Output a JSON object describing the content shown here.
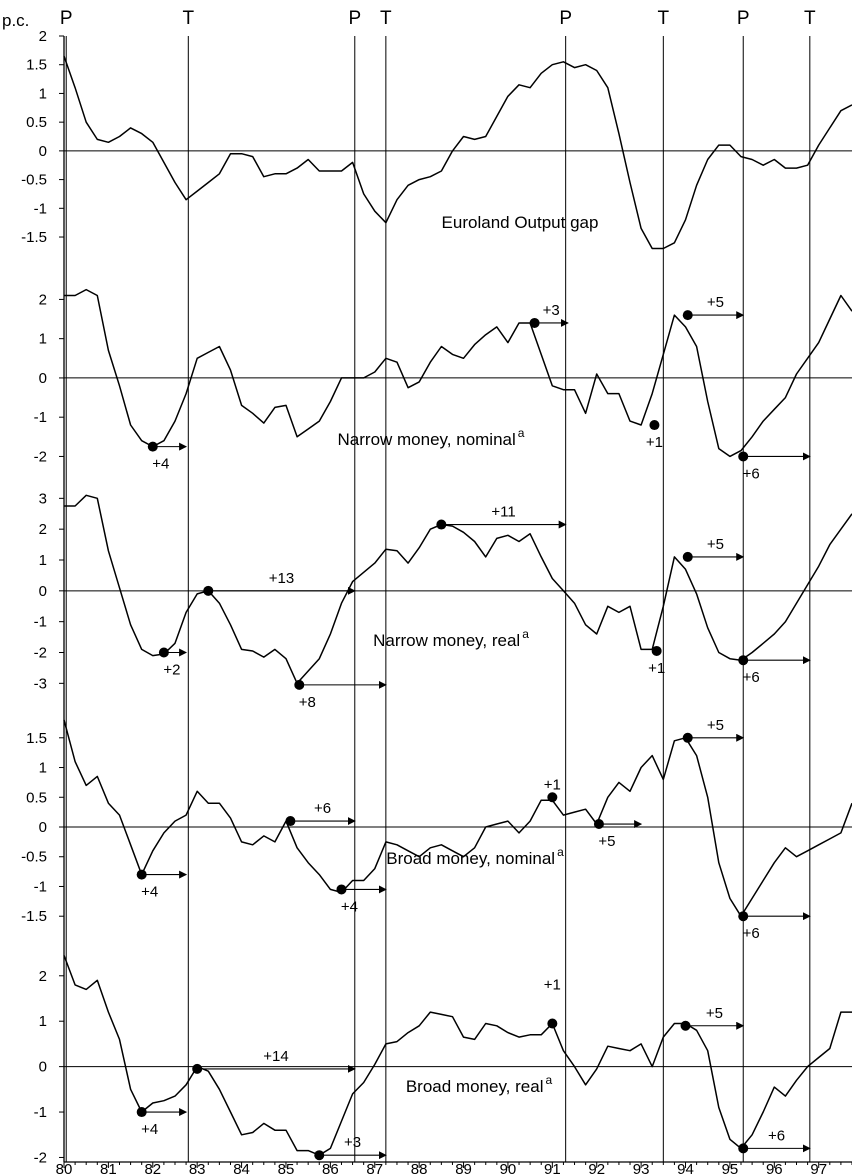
{
  "figure": {
    "y_unit_label": "p.c.",
    "turning_points": [
      {
        "type": "P",
        "x": 80.05
      },
      {
        "type": "T",
        "x": 82.8
      },
      {
        "type": "P",
        "x": 86.55
      },
      {
        "type": "T",
        "x": 87.25
      },
      {
        "type": "P",
        "x": 91.3
      },
      {
        "type": "T",
        "x": 93.5
      },
      {
        "type": "P",
        "x": 95.3
      },
      {
        "type": "T",
        "x": 96.8
      }
    ],
    "x_ticks": [
      "80",
      "81",
      "82",
      "83",
      "84",
      "85",
      "86",
      "87",
      "88",
      "89",
      "90",
      "91",
      "92",
      "93",
      "94",
      "95",
      "96",
      "97"
    ]
  },
  "chart_data": [
    {
      "type": "line",
      "title": "Euroland Output gap",
      "title_sup": "",
      "xlim": [
        80,
        97.75
      ],
      "ylim": [
        -1.9,
        2
      ],
      "yticks": [
        "2",
        "1.5",
        "1",
        "0.5",
        "0",
        "-0.5",
        "-1",
        "-1.5"
      ],
      "ytick_values": [
        2,
        1.5,
        1,
        0.5,
        0,
        -0.5,
        -1,
        -1.5
      ],
      "x": [
        80.0,
        80.25,
        80.5,
        80.75,
        81.0,
        81.25,
        81.5,
        81.75,
        82.0,
        82.25,
        82.5,
        82.75,
        83.0,
        83.25,
        83.5,
        83.75,
        84.0,
        84.25,
        84.5,
        84.75,
        85.0,
        85.25,
        85.5,
        85.75,
        86.0,
        86.25,
        86.5,
        86.75,
        87.0,
        87.25,
        87.5,
        87.75,
        88.0,
        88.25,
        88.5,
        88.75,
        89.0,
        89.25,
        89.5,
        89.75,
        90.0,
        90.25,
        90.5,
        90.75,
        91.0,
        91.25,
        91.5,
        91.75,
        92.0,
        92.25,
        92.5,
        92.75,
        93.0,
        93.25,
        93.5,
        93.75,
        94.0,
        94.25,
        94.5,
        94.75,
        95.0,
        95.25,
        95.5,
        95.75,
        96.0,
        96.25,
        96.5,
        96.75,
        97.0,
        97.25,
        97.5,
        97.75
      ],
      "y": [
        1.65,
        1.1,
        0.5,
        0.2,
        0.15,
        0.25,
        0.4,
        0.3,
        0.15,
        -0.2,
        -0.55,
        -0.85,
        -0.7,
        -0.55,
        -0.4,
        -0.05,
        -0.05,
        -0.1,
        -0.45,
        -0.4,
        -0.4,
        -0.3,
        -0.15,
        -0.35,
        -0.35,
        -0.35,
        -0.2,
        -0.75,
        -1.05,
        -1.25,
        -0.85,
        -0.6,
        -0.5,
        -0.45,
        -0.35,
        0.0,
        0.25,
        0.2,
        0.25,
        0.6,
        0.95,
        1.15,
        1.1,
        1.35,
        1.5,
        1.55,
        1.45,
        1.5,
        1.4,
        1.1,
        0.3,
        -0.55,
        -1.35,
        -1.7,
        -1.7,
        -1.6,
        -1.2,
        -0.6,
        -0.15,
        0.1,
        0.1,
        -0.1,
        -0.15,
        -0.25,
        -0.15,
        -0.3,
        -0.3,
        -0.25,
        0.1,
        0.4,
        0.7,
        0.8
      ],
      "markers": []
    },
    {
      "type": "line",
      "title": "Narrow money, nominal",
      "title_sup": "a",
      "xlim": [
        80,
        97.75
      ],
      "ylim": [
        -2.6,
        2.8
      ],
      "yticks": [
        "2",
        "1",
        "0",
        "-1",
        "-2"
      ],
      "ytick_values": [
        2,
        1,
        0,
        -1,
        -2
      ],
      "x": [
        80.0,
        80.25,
        80.5,
        80.75,
        81.0,
        81.25,
        81.5,
        81.75,
        82.0,
        82.25,
        82.5,
        82.75,
        83.0,
        83.25,
        83.5,
        83.75,
        84.0,
        84.25,
        84.5,
        84.75,
        85.0,
        85.25,
        85.5,
        85.75,
        86.0,
        86.25,
        86.5,
        86.75,
        87.0,
        87.25,
        87.5,
        87.75,
        88.0,
        88.25,
        88.5,
        88.75,
        89.0,
        89.25,
        89.5,
        89.75,
        90.0,
        90.25,
        90.5,
        90.75,
        91.0,
        91.25,
        91.5,
        91.75,
        92.0,
        92.25,
        92.5,
        92.75,
        93.0,
        93.25,
        93.5,
        93.75,
        94.0,
        94.25,
        94.5,
        94.75,
        95.0,
        95.25,
        95.5,
        95.75,
        96.0,
        96.25,
        96.5,
        96.75,
        97.0,
        97.25,
        97.5,
        97.75
      ],
      "y": [
        2.1,
        2.1,
        2.25,
        2.1,
        0.7,
        -0.2,
        -1.2,
        -1.6,
        -1.75,
        -1.6,
        -1.1,
        -0.4,
        0.5,
        0.65,
        0.8,
        0.2,
        -0.7,
        -0.9,
        -1.15,
        -0.75,
        -0.7,
        -1.5,
        -1.3,
        -1.1,
        -0.6,
        0.0,
        0.0,
        0.0,
        0.15,
        0.5,
        0.4,
        -0.25,
        -0.1,
        0.4,
        0.8,
        0.6,
        0.5,
        0.85,
        1.1,
        1.3,
        0.9,
        1.4,
        1.4,
        0.6,
        -0.2,
        -0.3,
        -0.3,
        -0.9,
        0.1,
        -0.4,
        -0.4,
        -1.1,
        -1.2,
        -0.4,
        0.6,
        1.6,
        1.3,
        0.8,
        -0.6,
        -1.8,
        -2.0,
        -1.85,
        -1.5,
        -1.1,
        -0.8,
        -0.5,
        0.1,
        0.5,
        0.9,
        1.5,
        2.1,
        1.7
      ],
      "markers": [
        {
          "x": 82.0,
          "y": -1.75,
          "label": "+4",
          "arrow_to": 82.75,
          "label_pos": "below"
        },
        {
          "x": 90.6,
          "y": 1.4,
          "label": "+3",
          "arrow_to": 91.35,
          "label_pos": "above"
        },
        {
          "x": 93.3,
          "y": -1.2,
          "label": "+1",
          "arrow_to": 93.3,
          "label_pos": "below"
        },
        {
          "x": 94.05,
          "y": 1.6,
          "label": "+5",
          "arrow_to": 95.3,
          "label_pos": "above"
        },
        {
          "x": 95.3,
          "y": -2.0,
          "label": "+6",
          "arrow_to": 96.8,
          "label_pos": "below"
        }
      ]
    },
    {
      "type": "line",
      "title": "Narrow money, real",
      "title_sup": "a",
      "xlim": [
        80,
        97.75
      ],
      "ylim": [
        -3.8,
        3.4
      ],
      "yticks": [
        "3",
        "2",
        "1",
        "0",
        "-1",
        "-2",
        "-3"
      ],
      "ytick_values": [
        3,
        2,
        1,
        0,
        -1,
        -2,
        -3
      ],
      "x": [
        80.0,
        80.25,
        80.5,
        80.75,
        81.0,
        81.25,
        81.5,
        81.75,
        82.0,
        82.25,
        82.5,
        82.75,
        83.0,
        83.25,
        83.5,
        83.75,
        84.0,
        84.25,
        84.5,
        84.75,
        85.0,
        85.25,
        85.5,
        85.75,
        86.0,
        86.25,
        86.5,
        86.75,
        87.0,
        87.25,
        87.5,
        87.75,
        88.0,
        88.25,
        88.5,
        88.75,
        89.0,
        89.25,
        89.5,
        89.75,
        90.0,
        90.25,
        90.5,
        90.75,
        91.0,
        91.25,
        91.5,
        91.75,
        92.0,
        92.25,
        92.5,
        92.75,
        93.0,
        93.25,
        93.5,
        93.75,
        94.0,
        94.25,
        94.5,
        94.75,
        95.0,
        95.25,
        95.5,
        95.75,
        96.0,
        96.25,
        96.5,
        96.75,
        97.0,
        97.25,
        97.5,
        97.75
      ],
      "y": [
        2.75,
        2.75,
        3.1,
        3.0,
        1.3,
        0.1,
        -1.1,
        -1.9,
        -2.1,
        -2.05,
        -1.7,
        -0.7,
        -0.1,
        0.0,
        -0.4,
        -1.1,
        -1.9,
        -1.95,
        -2.15,
        -1.9,
        -2.2,
        -3.0,
        -2.6,
        -2.2,
        -1.4,
        -0.4,
        0.3,
        0.6,
        0.9,
        1.35,
        1.3,
        0.9,
        1.4,
        2.0,
        2.15,
        2.1,
        1.9,
        1.6,
        1.1,
        1.7,
        1.8,
        1.6,
        1.85,
        1.1,
        0.4,
        0.0,
        -0.4,
        -1.1,
        -1.4,
        -0.5,
        -0.7,
        -0.5,
        -1.9,
        -1.9,
        -0.5,
        1.1,
        0.7,
        -0.1,
        -1.2,
        -2.0,
        -2.2,
        -2.25,
        -2.0,
        -1.7,
        -1.4,
        -1.0,
        -0.4,
        0.2,
        0.8,
        1.5,
        2.0,
        2.5
      ],
      "markers": [
        {
          "x": 82.25,
          "y": -2.0,
          "label": "+2",
          "arrow_to": 82.75,
          "label_pos": "below"
        },
        {
          "x": 83.25,
          "y": 0.0,
          "label": "+13",
          "arrow_to": 86.55,
          "label_pos": "above"
        },
        {
          "x": 85.3,
          "y": -3.05,
          "label": "+8",
          "arrow_to": 87.25,
          "label_pos": "below"
        },
        {
          "x": 88.5,
          "y": 2.15,
          "label": "+11",
          "arrow_to": 91.3,
          "label_pos": "above"
        },
        {
          "x": 93.35,
          "y": -1.95,
          "label": "+1",
          "arrow_to": 93.35,
          "label_pos": "below"
        },
        {
          "x": 94.05,
          "y": 1.1,
          "label": "+5",
          "arrow_to": 95.3,
          "label_pos": "above"
        },
        {
          "x": 95.3,
          "y": -2.25,
          "label": "+6",
          "arrow_to": 96.8,
          "label_pos": "below"
        }
      ]
    },
    {
      "type": "line",
      "title": "Broad money, nominal",
      "title_sup": "a",
      "xlim": [
        80,
        97.75
      ],
      "ylim": [
        -1.9,
        1.9
      ],
      "yticks": [
        "1.5",
        "1",
        "0.5",
        "0",
        "-0.5",
        "-1",
        "-1.5"
      ],
      "ytick_values": [
        1.5,
        1,
        0.5,
        0,
        -0.5,
        -1,
        -1.5
      ],
      "x": [
        80.0,
        80.25,
        80.5,
        80.75,
        81.0,
        81.25,
        81.5,
        81.75,
        82.0,
        82.25,
        82.5,
        82.75,
        83.0,
        83.25,
        83.5,
        83.75,
        84.0,
        84.25,
        84.5,
        84.75,
        85.0,
        85.25,
        85.5,
        85.75,
        86.0,
        86.25,
        86.5,
        86.75,
        87.0,
        87.25,
        87.5,
        87.75,
        88.0,
        88.25,
        88.5,
        88.75,
        89.0,
        89.25,
        89.5,
        89.75,
        90.0,
        90.25,
        90.5,
        90.75,
        91.0,
        91.25,
        91.5,
        91.75,
        92.0,
        92.25,
        92.5,
        92.75,
        93.0,
        93.25,
        93.5,
        93.75,
        94.0,
        94.25,
        94.5,
        94.75,
        95.0,
        95.25,
        95.5,
        95.75,
        96.0,
        96.25,
        96.5,
        96.75,
        97.0,
        97.25,
        97.5,
        97.75
      ],
      "y": [
        1.8,
        1.1,
        0.7,
        0.85,
        0.4,
        0.2,
        -0.3,
        -0.8,
        -0.4,
        -0.1,
        0.1,
        0.2,
        0.6,
        0.4,
        0.4,
        0.15,
        -0.25,
        -0.3,
        -0.15,
        -0.25,
        0.1,
        -0.35,
        -0.6,
        -0.8,
        -1.05,
        -1.1,
        -0.9,
        -0.9,
        -0.7,
        -0.25,
        -0.3,
        -0.4,
        -0.5,
        -0.35,
        -0.3,
        -0.4,
        -0.5,
        -0.35,
        0.0,
        0.05,
        0.1,
        -0.1,
        0.1,
        0.45,
        0.45,
        0.2,
        0.25,
        0.3,
        0.05,
        0.5,
        0.75,
        0.6,
        1.0,
        1.2,
        0.8,
        1.45,
        1.5,
        1.2,
        0.5,
        -0.6,
        -1.2,
        -1.5,
        -1.2,
        -0.9,
        -0.6,
        -0.35,
        -0.5,
        -0.4,
        -0.3,
        -0.2,
        -0.1,
        0.4
      ],
      "markers": [
        {
          "x": 81.75,
          "y": -0.8,
          "label": "+4",
          "arrow_to": 82.75,
          "label_pos": "below"
        },
        {
          "x": 85.1,
          "y": 0.1,
          "label": "+6",
          "arrow_to": 86.55,
          "label_pos": "above"
        },
        {
          "x": 86.25,
          "y": -1.05,
          "label": "+4",
          "arrow_to": 87.25,
          "label_pos": "below"
        },
        {
          "x": 91.0,
          "y": 0.5,
          "label": "+1",
          "arrow_to": 91.0,
          "label_pos": "above"
        },
        {
          "x": 92.05,
          "y": 0.05,
          "label": "+5",
          "arrow_to": 93.0,
          "label_pos": "below"
        },
        {
          "x": 94.05,
          "y": 1.5,
          "label": "+5",
          "arrow_to": 95.3,
          "label_pos": "above"
        },
        {
          "x": 95.3,
          "y": -1.5,
          "label": "+6",
          "arrow_to": 96.8,
          "label_pos": "below"
        }
      ]
    },
    {
      "type": "line",
      "title": "Broad money, real",
      "title_sup": "a",
      "xlim": [
        80,
        97.75
      ],
      "ylim": [
        -2.1,
        2.7
      ],
      "yticks": [
        "2",
        "1",
        "0",
        "-1",
        "-2"
      ],
      "ytick_values": [
        2,
        1,
        0,
        -1,
        -2
      ],
      "x": [
        80.0,
        80.25,
        80.5,
        80.75,
        81.0,
        81.25,
        81.5,
        81.75,
        82.0,
        82.25,
        82.5,
        82.75,
        83.0,
        83.25,
        83.5,
        83.75,
        84.0,
        84.25,
        84.5,
        84.75,
        85.0,
        85.25,
        85.5,
        85.75,
        86.0,
        86.25,
        86.5,
        86.75,
        87.0,
        87.25,
        87.5,
        87.75,
        88.0,
        88.25,
        88.5,
        88.75,
        89.0,
        89.25,
        89.5,
        89.75,
        90.0,
        90.25,
        90.5,
        90.75,
        91.0,
        91.25,
        91.5,
        91.75,
        92.0,
        92.25,
        92.5,
        92.75,
        93.0,
        93.25,
        93.5,
        93.75,
        94.0,
        94.25,
        94.5,
        94.75,
        95.0,
        95.25,
        95.5,
        95.75,
        96.0,
        96.25,
        96.5,
        96.75,
        97.0,
        97.25,
        97.5,
        97.75
      ],
      "y": [
        2.45,
        1.8,
        1.7,
        1.9,
        1.2,
        0.6,
        -0.5,
        -1.0,
        -0.8,
        -0.75,
        -0.65,
        -0.4,
        0.0,
        -0.1,
        -0.5,
        -1.0,
        -1.5,
        -1.45,
        -1.25,
        -1.4,
        -1.4,
        -1.85,
        -1.85,
        -1.95,
        -1.8,
        -1.2,
        -0.6,
        -0.35,
        0.05,
        0.5,
        0.55,
        0.75,
        0.9,
        1.2,
        1.15,
        1.1,
        0.65,
        0.6,
        0.95,
        0.9,
        0.75,
        0.65,
        0.7,
        0.7,
        0.95,
        0.35,
        0.0,
        -0.4,
        -0.05,
        0.45,
        0.4,
        0.35,
        0.5,
        0.0,
        0.65,
        0.95,
        0.95,
        0.8,
        0.35,
        -0.9,
        -1.6,
        -1.8,
        -1.5,
        -1.0,
        -0.45,
        -0.65,
        -0.3,
        0.0,
        0.2,
        0.4,
        1.2,
        1.2
      ],
      "markers": [
        {
          "x": 81.75,
          "y": -1.0,
          "label": "+4",
          "arrow_to": 82.75,
          "label_pos": "below"
        },
        {
          "x": 83.0,
          "y": -0.05,
          "label": "+14",
          "arrow_to": 86.55,
          "label_pos": "above"
        },
        {
          "x": 85.75,
          "y": -1.95,
          "label": "+3",
          "arrow_to": 87.25,
          "label_pos": "above"
        },
        {
          "x": 91.0,
          "y": 0.95,
          "label": "+1",
          "arrow_to": 91.0,
          "label_pos": "high"
        },
        {
          "x": 94.0,
          "y": 0.9,
          "label": "+5",
          "arrow_to": 95.3,
          "label_pos": "above"
        },
        {
          "x": 95.3,
          "y": -1.8,
          "label": "+6",
          "arrow_to": 96.8,
          "label_pos": "above"
        }
      ]
    }
  ]
}
